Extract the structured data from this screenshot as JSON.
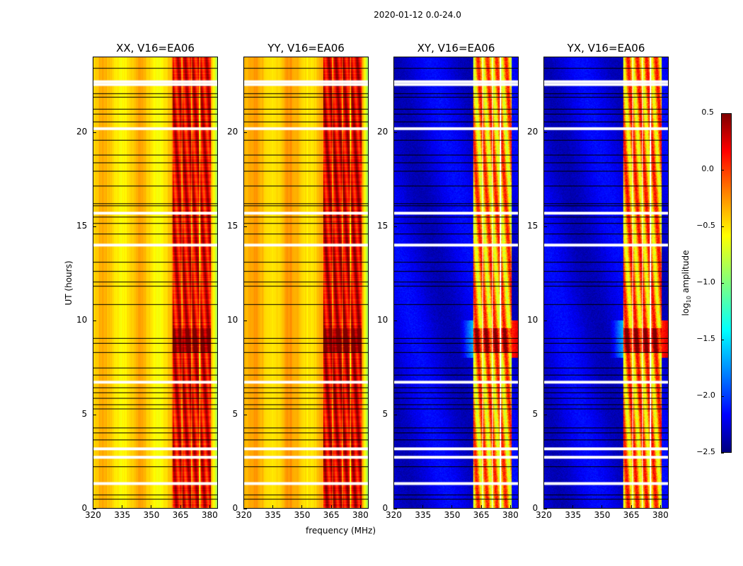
{
  "chart_data": {
    "type": "heatmap",
    "title": "2020-01-12 0.0-24.0",
    "xlabel": "frequency (MHz)",
    "ylabel": "UT (hours)",
    "xlim": [
      320,
      384.4
    ],
    "ylim": [
      0,
      24
    ],
    "xticks": [
      320,
      335,
      350,
      365,
      380
    ],
    "yticks": [
      0,
      5,
      10,
      15,
      20
    ],
    "colorbar": {
      "label_prefix": "log",
      "label_sub": "10",
      "label_suffix": " amplitude",
      "range": [
        -2.5,
        0.5
      ],
      "ticks": [
        "−2.5",
        "−2.0",
        "−1.5",
        "−1.0",
        "−0.5",
        "0.0",
        "0.5"
      ],
      "colormap": "jet"
    },
    "panels": [
      {
        "title": "XX, V16=EA06",
        "kind": "parallel",
        "base_level": -0.45,
        "band_level": 0.05
      },
      {
        "title": "YY, V16=EA06",
        "kind": "parallel",
        "base_level": -0.4,
        "band_level": 0.1
      },
      {
        "title": "XY, V16=EA06",
        "kind": "cross",
        "base_level": -2.3,
        "band_level": -0.5
      },
      {
        "title": "YX, V16=EA06",
        "kind": "cross",
        "base_level": -2.3,
        "band_level": -0.45
      }
    ],
    "strong_band_mhz": [
      361,
      381
    ],
    "band_gap_mhz": [
      365.8,
      370.9,
      375.2
    ],
    "peak_hours": [
      8.3,
      9.6
    ],
    "flagged_hours": [
      22.55,
      22.7,
      20.2,
      15.7,
      14.0,
      6.7,
      3.15,
      2.7,
      1.3
    ],
    "dividing_line_hours": [
      23.45,
      22.1,
      21.91,
      21.24,
      20.98,
      20.6,
      19.62,
      18.8,
      18.42,
      17.97,
      17.15,
      16.21,
      16.1,
      15.53,
      15.16,
      14.6,
      13.1,
      12.61,
      12.05,
      11.82,
      10.84,
      9.04,
      8.78,
      8.29,
      7.47,
      7.09,
      6.42,
      6.15,
      5.85,
      5.52,
      5.29,
      4.28,
      4.01,
      3.64,
      2.21,
      0.71,
      0.49
    ]
  }
}
